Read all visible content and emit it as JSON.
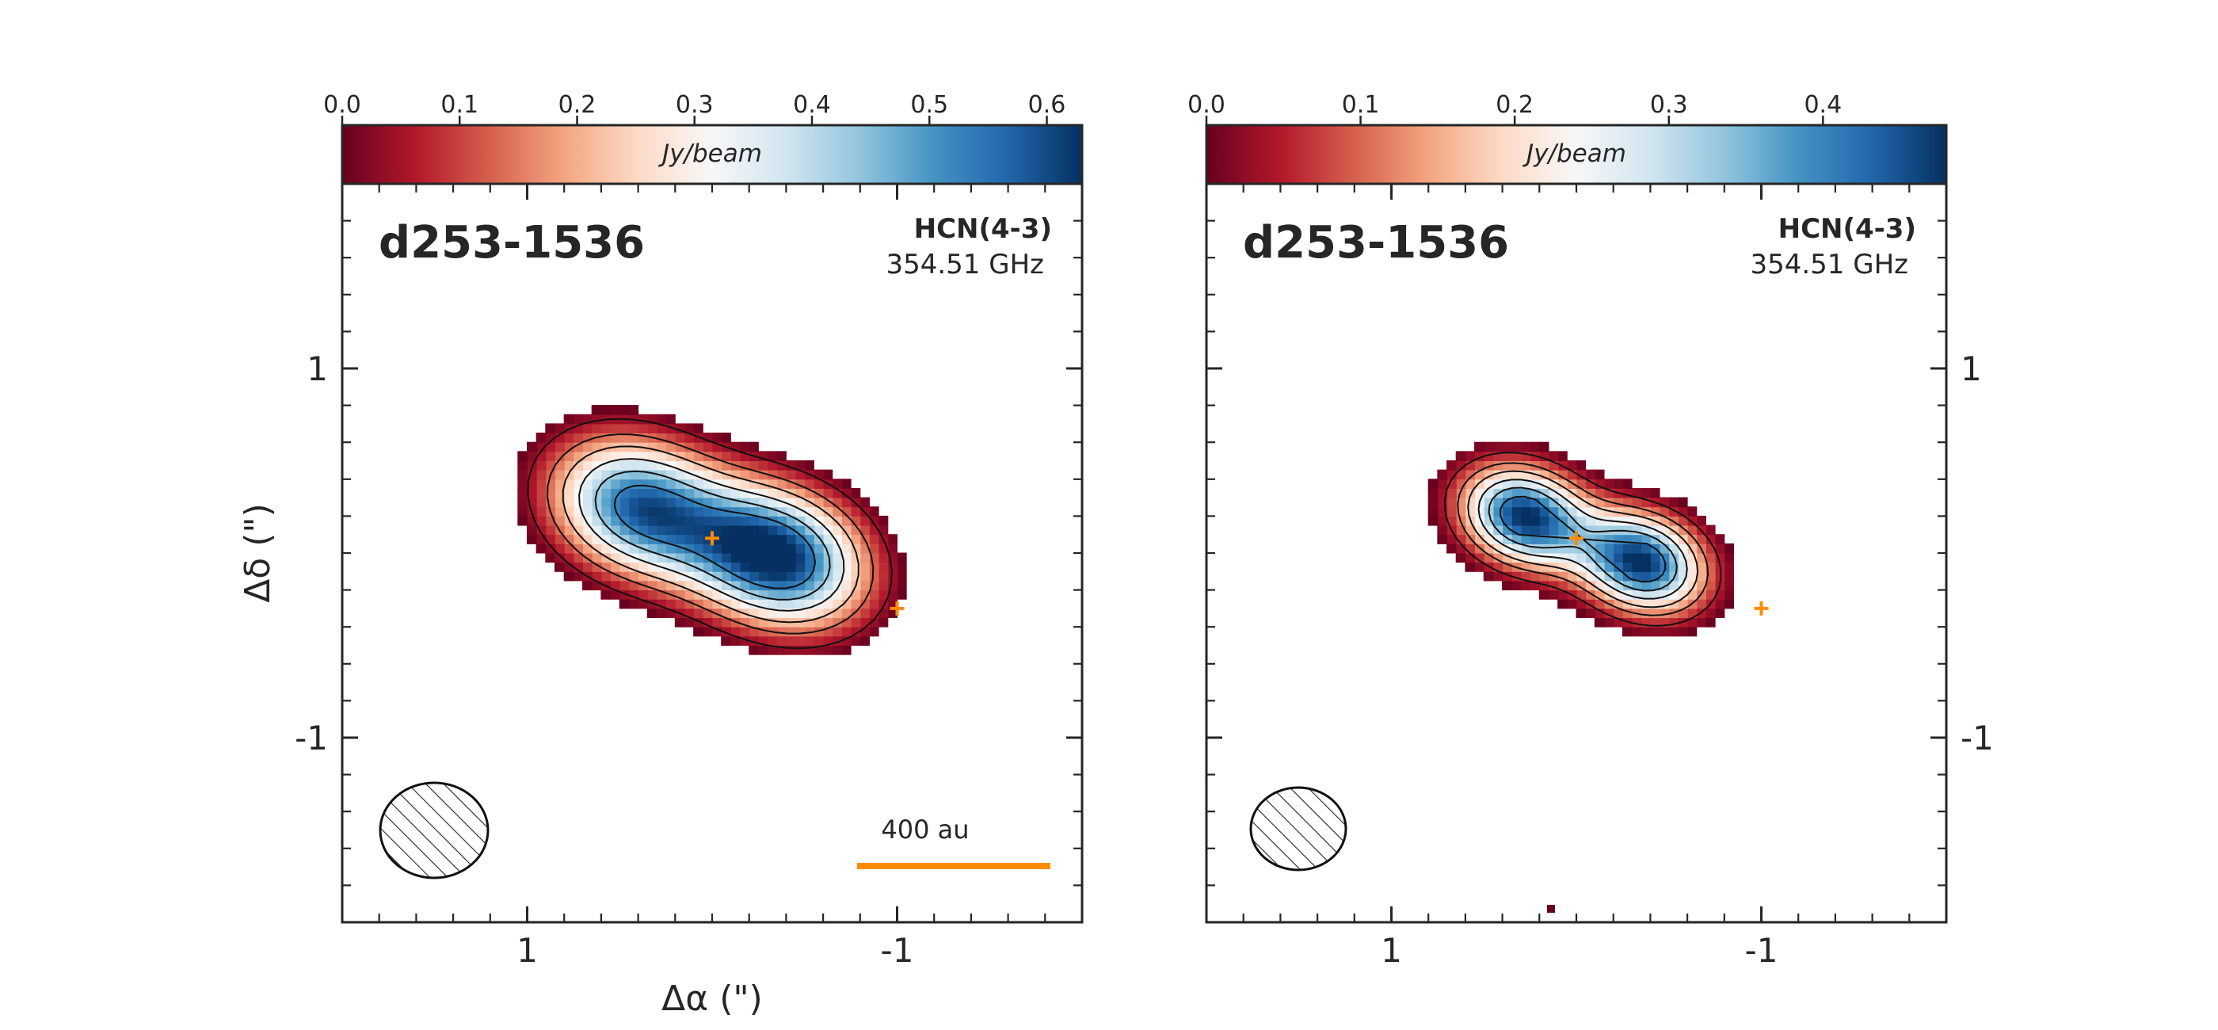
{
  "chart_data": [
    {
      "type": "heatmap",
      "panel": "left",
      "source_label": "d253-1536",
      "line_label": "HCN(4-3)",
      "frequency_label": "354.51 GHz",
      "colorbar": {
        "label": "Jy/beam",
        "range": [
          0,
          0.63
        ],
        "ticks": [
          "0.0",
          "0.1",
          "0.2",
          "0.3",
          "0.4",
          "0.5",
          "0.6"
        ],
        "tick_values": [
          0.0,
          0.1,
          0.2,
          0.3,
          0.4,
          0.5,
          0.6
        ],
        "colormap": "RdBu"
      },
      "xlabel": "Δα (\")",
      "ylabel": "Δδ (\")",
      "xlim": [
        2.0,
        -2.0
      ],
      "ylim": [
        -2.0,
        2.0
      ],
      "x_ticks": [
        "1",
        "-1"
      ],
      "x_tick_values": [
        1,
        -1
      ],
      "y_ticks": [
        "1",
        "-1"
      ],
      "y_tick_values": [
        1,
        -1
      ],
      "emission_peaks": [
        {
          "x": 0.4,
          "y": 0.25,
          "peak": 0.55
        },
        {
          "x": -0.35,
          "y": -0.02,
          "peak": 0.63
        }
      ],
      "stars": [
        {
          "x": 0.0,
          "y": 0.08
        },
        {
          "x": -1.0,
          "y": -0.3
        }
      ],
      "beam": {
        "major": 0.6,
        "minor": 0.45
      },
      "scalebar_label": "400 au",
      "scalebar_length_arcsec": 1.05
    },
    {
      "type": "heatmap",
      "panel": "right",
      "source_label": "d253-1536",
      "line_label": "HCN(4-3)",
      "frequency_label": "354.51 GHz",
      "colorbar": {
        "label": "Jy/beam",
        "range": [
          0,
          0.48
        ],
        "ticks": [
          "0.0",
          "0.1",
          "0.2",
          "0.3",
          "0.4"
        ],
        "tick_values": [
          0.0,
          0.1,
          0.2,
          0.3,
          0.4
        ],
        "colormap": "RdBu"
      },
      "xlim": [
        2.0,
        -2.0
      ],
      "ylim": [
        -2.0,
        2.0
      ],
      "x_ticks": [
        "1",
        "-1"
      ],
      "x_tick_values": [
        1,
        -1
      ],
      "y_ticks": [
        "1",
        "-1"
      ],
      "y_tick_values": [
        1,
        -1
      ],
      "emission_peaks": [
        {
          "x": 0.28,
          "y": 0.2,
          "peak": 0.47
        },
        {
          "x": -0.35,
          "y": -0.05,
          "peak": 0.47
        }
      ],
      "stars": [
        {
          "x": 0.0,
          "y": 0.08
        },
        {
          "x": -1.0,
          "y": -0.3
        }
      ],
      "beam": {
        "major": 0.52,
        "minor": 0.45
      }
    }
  ]
}
